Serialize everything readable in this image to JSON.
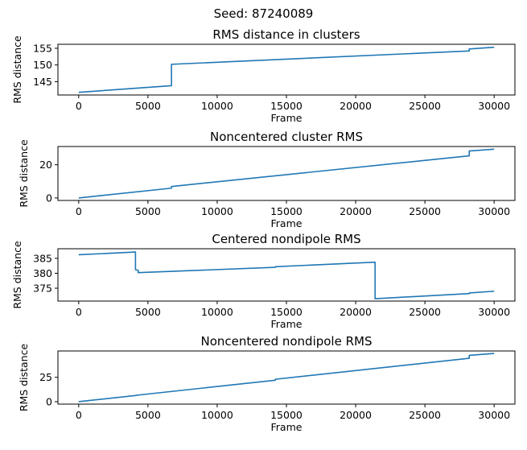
{
  "figure": {
    "suptitle": "Seed: 87240089"
  },
  "chart_data": [
    {
      "type": "line",
      "title": "RMS distance in clusters",
      "xlabel": "Frame",
      "ylabel": "RMS distance",
      "xlim": [
        -1500,
        31500
      ],
      "ylim": [
        141,
        156.2
      ],
      "xticks": [
        0,
        5000,
        10000,
        15000,
        20000,
        25000,
        30000
      ],
      "yticks": [
        145,
        150,
        155
      ],
      "grid": false,
      "series": [
        {
          "x": [
            0,
            6700,
            6700,
            28200,
            28200,
            30000
          ],
          "y": [
            141.8,
            143.8,
            150.2,
            154.2,
            154.8,
            155.3
          ]
        }
      ]
    },
    {
      "type": "line",
      "title": "Noncentered cluster RMS",
      "xlabel": "Frame",
      "ylabel": "RMS distance",
      "xlim": [
        -1500,
        31500
      ],
      "ylim": [
        -1.5,
        31
      ],
      "xticks": [
        0,
        5000,
        10000,
        15000,
        20000,
        25000,
        30000
      ],
      "yticks": [
        0,
        20
      ],
      "grid": false,
      "series": [
        {
          "x": [
            0,
            6700,
            6700,
            28200,
            28200,
            30000
          ],
          "y": [
            0,
            5.9,
            6.9,
            25.4,
            28.3,
            29.4
          ]
        }
      ]
    },
    {
      "type": "line",
      "title": "Centered nondipole RMS",
      "xlabel": "Frame",
      "ylabel": "RMS distance",
      "xlim": [
        -1500,
        31500
      ],
      "ylim": [
        370.7,
        388.2
      ],
      "xticks": [
        0,
        5000,
        10000,
        15000,
        20000,
        25000,
        30000
      ],
      "yticks": [
        375,
        380,
        385
      ],
      "grid": false,
      "series": [
        {
          "x": [
            0,
            4100,
            4100,
            4300,
            4300,
            14200,
            14200,
            21400,
            21400,
            28200,
            28200,
            30000
          ],
          "y": [
            386.2,
            387.1,
            381.2,
            381.0,
            380.2,
            382.0,
            382.2,
            383.7,
            371.5,
            373.2,
            373.4,
            374.0
          ]
        }
      ]
    },
    {
      "type": "line",
      "title": "Noncentered nondipole RMS",
      "xlabel": "Frame",
      "ylabel": "RMS distance",
      "xlim": [
        -1500,
        31500
      ],
      "ylim": [
        -2.5,
        52
      ],
      "xticks": [
        0,
        5000,
        10000,
        15000,
        20000,
        25000,
        30000
      ],
      "yticks": [
        0,
        25
      ],
      "grid": false,
      "series": [
        {
          "x": [
            0,
            4100,
            4300,
            14200,
            14200,
            28200,
            28200,
            30000
          ],
          "y": [
            0,
            6.3,
            6.8,
            22.0,
            23.0,
            44.5,
            47.5,
            49.5
          ]
        }
      ]
    }
  ]
}
